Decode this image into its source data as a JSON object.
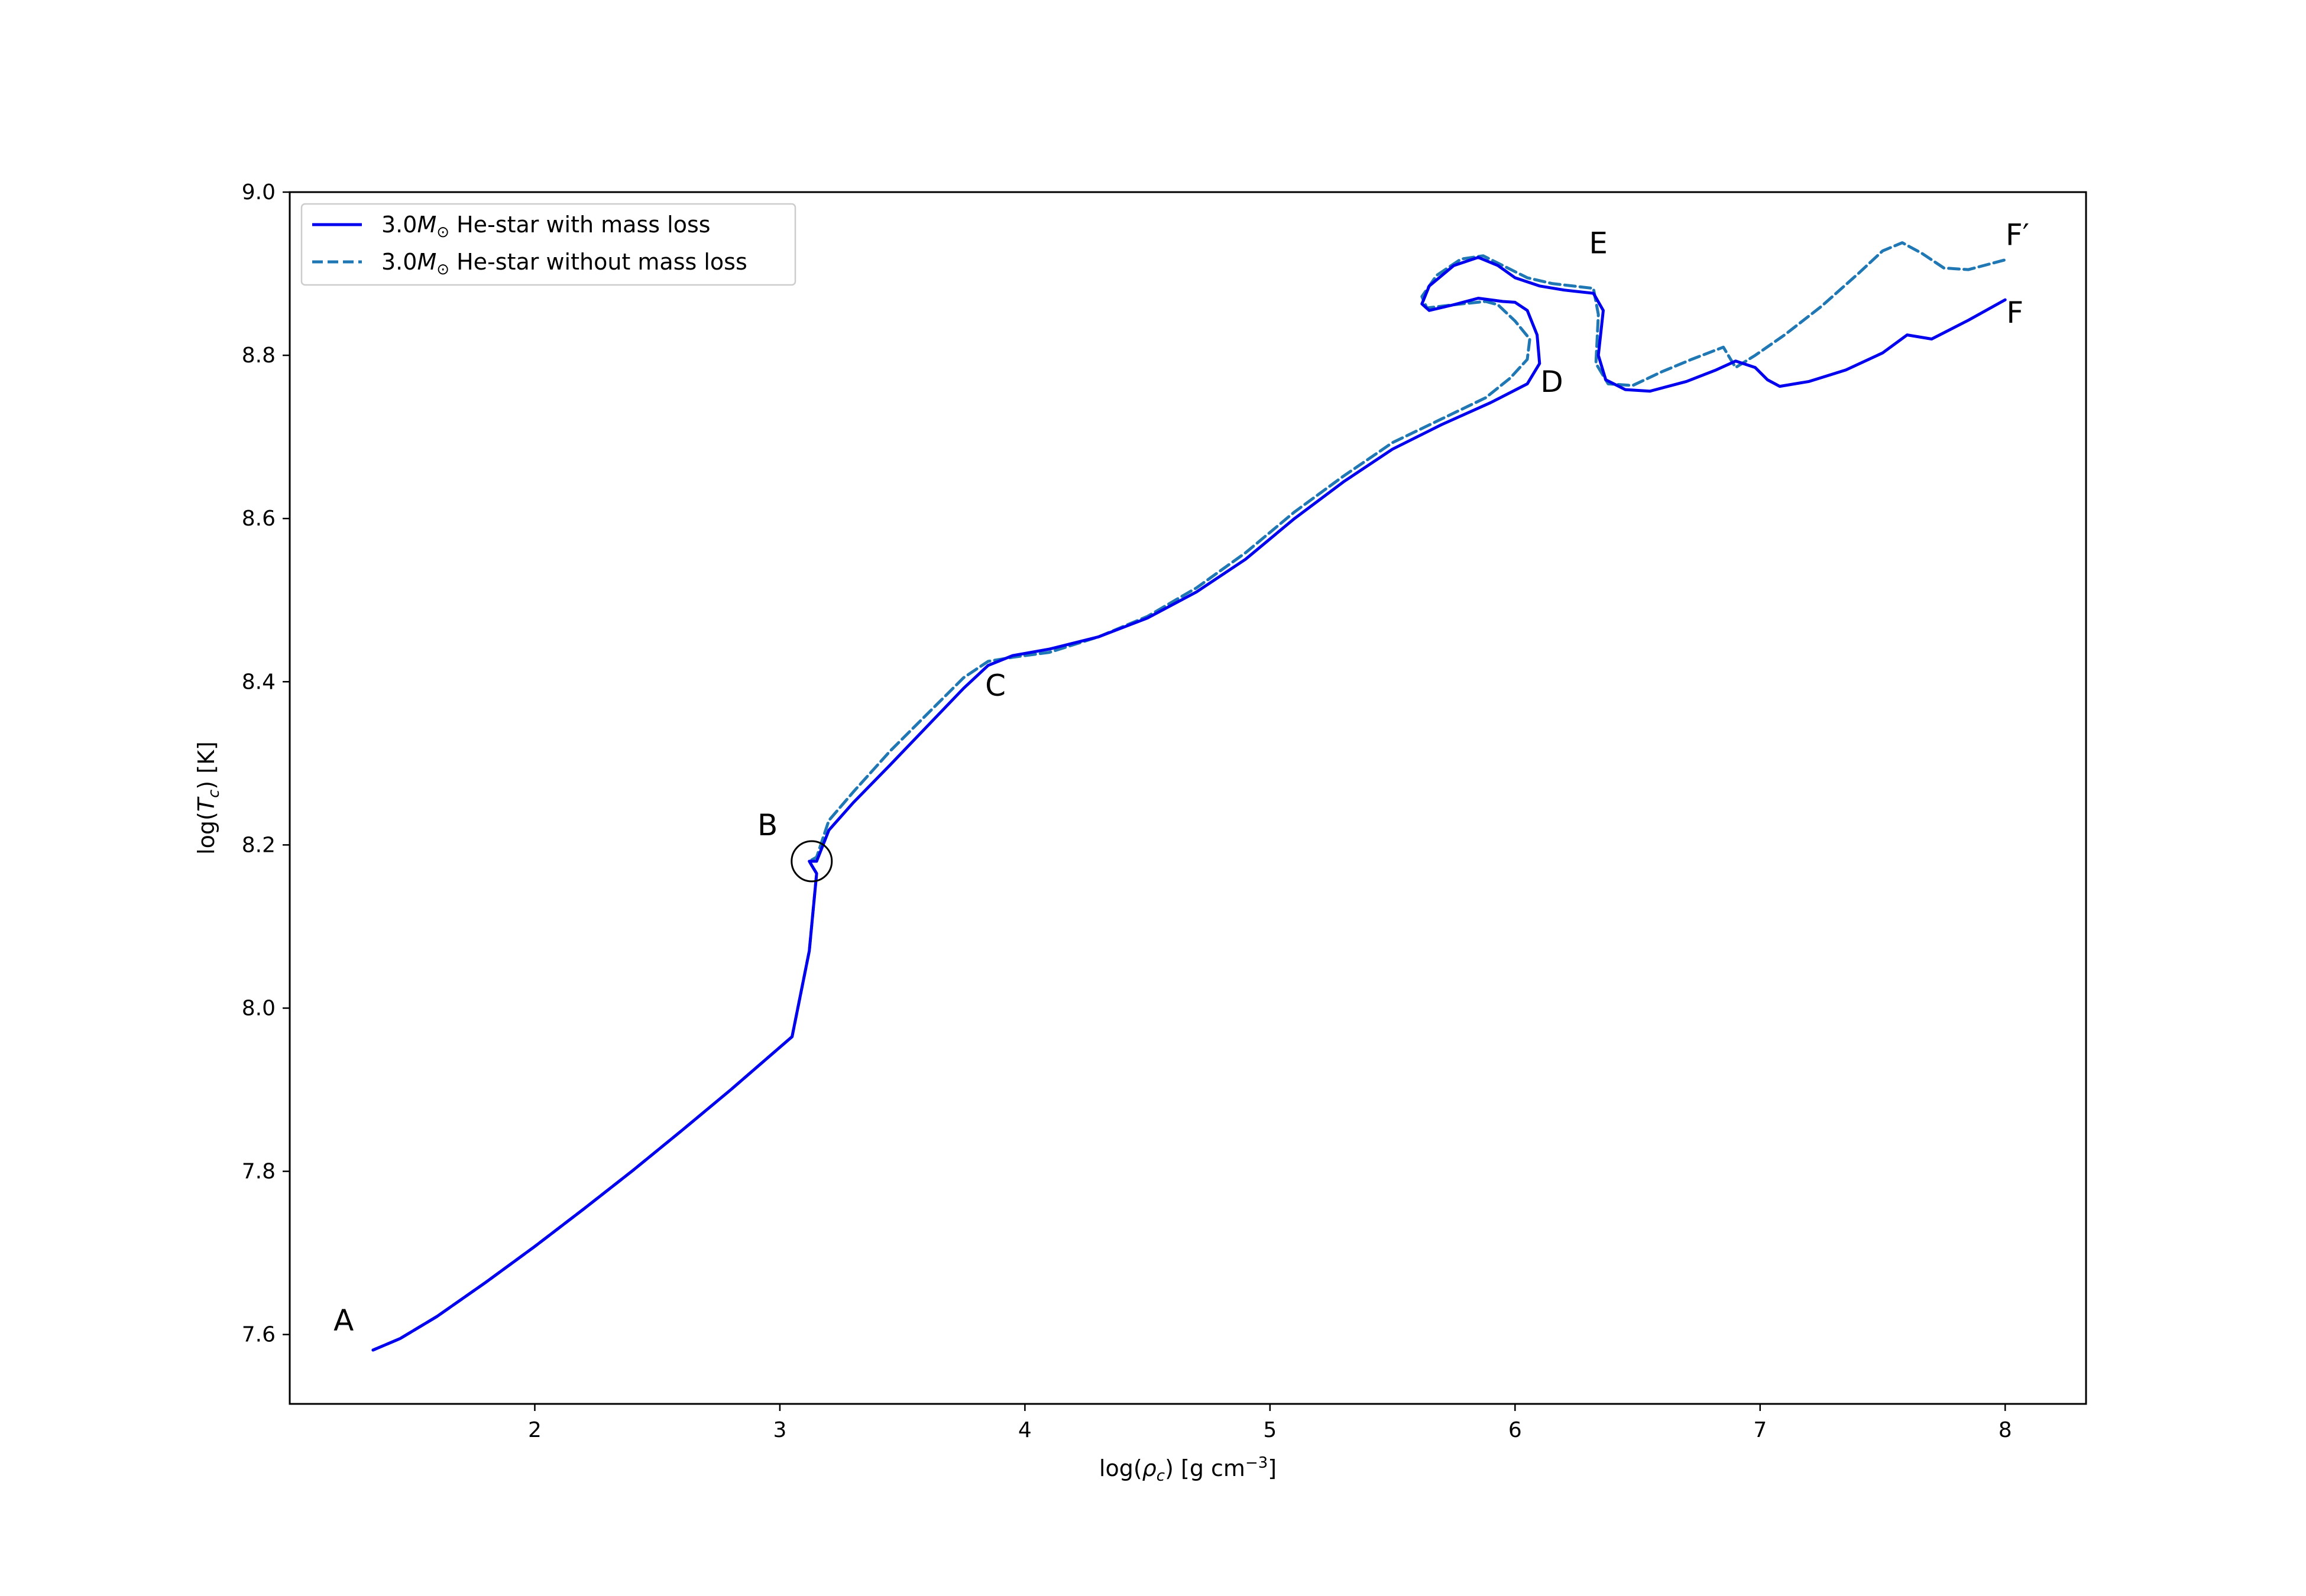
{
  "chart_data": {
    "type": "line",
    "xlabel": "log(ρc) [g cm⁻³]",
    "ylabel": "log(Tc)  [K]",
    "xlim": [
      1.0,
      8.33
    ],
    "ylim": [
      7.515,
      9.0
    ],
    "xticks": [
      2,
      3,
      4,
      5,
      6,
      7,
      8
    ],
    "yticks": [
      7.6,
      7.8,
      8.0,
      8.2,
      8.4,
      8.6,
      8.8,
      9.0
    ],
    "xtick_labels": [
      "2",
      "3",
      "4",
      "5",
      "6",
      "7",
      "8"
    ],
    "ytick_labels": [
      "7.6",
      "7.8",
      "8.0",
      "8.2",
      "8.4",
      "8.6",
      "8.8",
      "9.0"
    ],
    "grid": false,
    "legend_position": "top-left",
    "colors": {
      "with_mass_loss": "#0000ee",
      "without_mass_loss": "#1f77b4"
    },
    "series": [
      {
        "name": "3.0M⊙ He-star with mass loss",
        "style": "solid",
        "points": [
          [
            1.34,
            7.581
          ],
          [
            1.45,
            7.595
          ],
          [
            1.6,
            7.622
          ],
          [
            1.8,
            7.664
          ],
          [
            2.0,
            7.708
          ],
          [
            2.2,
            7.754
          ],
          [
            2.4,
            7.801
          ],
          [
            2.6,
            7.85
          ],
          [
            2.8,
            7.9
          ],
          [
            3.05,
            7.965
          ],
          [
            3.12,
            8.07
          ],
          [
            3.15,
            8.165
          ],
          [
            3.13,
            8.175
          ],
          [
            3.12,
            8.18
          ],
          [
            3.15,
            8.18
          ],
          [
            3.2,
            8.218
          ],
          [
            3.3,
            8.252
          ],
          [
            3.45,
            8.298
          ],
          [
            3.6,
            8.345
          ],
          [
            3.75,
            8.392
          ],
          [
            3.85,
            8.42
          ],
          [
            3.95,
            8.432
          ],
          [
            4.1,
            8.44
          ],
          [
            4.3,
            8.455
          ],
          [
            4.5,
            8.478
          ],
          [
            4.7,
            8.51
          ],
          [
            4.9,
            8.55
          ],
          [
            5.1,
            8.6
          ],
          [
            5.3,
            8.645
          ],
          [
            5.5,
            8.685
          ],
          [
            5.7,
            8.715
          ],
          [
            5.9,
            8.742
          ],
          [
            6.05,
            8.765
          ],
          [
            6.1,
            8.79
          ],
          [
            6.09,
            8.825
          ],
          [
            6.05,
            8.855
          ],
          [
            6.0,
            8.865
          ],
          [
            5.95,
            8.866
          ],
          [
            5.85,
            8.87
          ],
          [
            5.75,
            8.862
          ],
          [
            5.65,
            8.855
          ],
          [
            5.62,
            8.863
          ],
          [
            5.65,
            8.885
          ],
          [
            5.75,
            8.91
          ],
          [
            5.85,
            8.92
          ],
          [
            5.93,
            8.91
          ],
          [
            6.0,
            8.895
          ],
          [
            6.1,
            8.885
          ],
          [
            6.2,
            8.88
          ],
          [
            6.32,
            8.876
          ],
          [
            6.36,
            8.855
          ],
          [
            6.34,
            8.8
          ],
          [
            6.37,
            8.77
          ],
          [
            6.45,
            8.758
          ],
          [
            6.55,
            8.756
          ],
          [
            6.7,
            8.768
          ],
          [
            6.82,
            8.782
          ],
          [
            6.9,
            8.793
          ],
          [
            6.98,
            8.785
          ],
          [
            7.03,
            8.77
          ],
          [
            7.08,
            8.762
          ],
          [
            7.2,
            8.768
          ],
          [
            7.35,
            8.782
          ],
          [
            7.5,
            8.803
          ],
          [
            7.6,
            8.825
          ],
          [
            7.7,
            8.82
          ],
          [
            7.85,
            8.843
          ],
          [
            8.0,
            8.868
          ]
        ]
      },
      {
        "name": "3.0M⊙ He-star without mass loss",
        "style": "dashed",
        "points": [
          [
            1.34,
            7.581
          ],
          [
            1.45,
            7.595
          ],
          [
            1.6,
            7.622
          ],
          [
            1.8,
            7.664
          ],
          [
            2.0,
            7.708
          ],
          [
            2.2,
            7.754
          ],
          [
            2.4,
            7.801
          ],
          [
            2.6,
            7.85
          ],
          [
            2.8,
            7.9
          ],
          [
            3.05,
            7.965
          ],
          [
            3.12,
            8.07
          ],
          [
            3.15,
            8.165
          ],
          [
            3.13,
            8.175
          ],
          [
            3.12,
            8.18
          ],
          [
            3.15,
            8.185
          ],
          [
            3.2,
            8.23
          ],
          [
            3.3,
            8.265
          ],
          [
            3.45,
            8.315
          ],
          [
            3.6,
            8.36
          ],
          [
            3.75,
            8.405
          ],
          [
            3.85,
            8.425
          ],
          [
            3.95,
            8.43
          ],
          [
            4.1,
            8.436
          ],
          [
            4.3,
            8.455
          ],
          [
            4.5,
            8.48
          ],
          [
            4.7,
            8.515
          ],
          [
            4.9,
            8.558
          ],
          [
            5.1,
            8.608
          ],
          [
            5.3,
            8.652
          ],
          [
            5.5,
            8.693
          ],
          [
            5.7,
            8.722
          ],
          [
            5.88,
            8.748
          ],
          [
            5.98,
            8.772
          ],
          [
            6.05,
            8.795
          ],
          [
            6.06,
            8.82
          ],
          [
            6.0,
            8.842
          ],
          [
            5.93,
            8.862
          ],
          [
            5.88,
            8.866
          ],
          [
            5.75,
            8.862
          ],
          [
            5.64,
            8.858
          ],
          [
            5.62,
            8.872
          ],
          [
            5.68,
            8.898
          ],
          [
            5.78,
            8.918
          ],
          [
            5.87,
            8.922
          ],
          [
            5.95,
            8.91
          ],
          [
            6.05,
            8.895
          ],
          [
            6.15,
            8.888
          ],
          [
            6.32,
            8.882
          ],
          [
            6.34,
            8.85
          ],
          [
            6.33,
            8.79
          ],
          [
            6.38,
            8.765
          ],
          [
            6.48,
            8.763
          ],
          [
            6.6,
            8.78
          ],
          [
            6.72,
            8.795
          ],
          [
            6.85,
            8.81
          ],
          [
            6.9,
            8.785
          ],
          [
            6.98,
            8.8
          ],
          [
            7.1,
            8.825
          ],
          [
            7.25,
            8.86
          ],
          [
            7.4,
            8.9
          ],
          [
            7.5,
            8.928
          ],
          [
            7.58,
            8.938
          ],
          [
            7.66,
            8.925
          ],
          [
            7.75,
            8.907
          ],
          [
            7.85,
            8.905
          ],
          [
            8.0,
            8.917
          ]
        ]
      }
    ],
    "annotations": [
      {
        "label": "A",
        "x": 1.22,
        "y": 7.605
      },
      {
        "label": "B",
        "x": 2.95,
        "y": 8.212
      },
      {
        "label": "C",
        "x": 3.88,
        "y": 8.383
      },
      {
        "label": "D",
        "x": 6.15,
        "y": 8.755
      },
      {
        "label": "E",
        "x": 6.34,
        "y": 8.925
      },
      {
        "label": "F′",
        "x": 8.05,
        "y": 8.935
      },
      {
        "label": "F",
        "x": 8.04,
        "y": 8.84
      }
    ],
    "marker_circle": {
      "x": 3.13,
      "y": 8.18
    },
    "legend": {
      "entries": [
        "3.0M⊙ He-star with mass loss",
        "3.0M⊙ He-star without mass loss"
      ]
    }
  }
}
